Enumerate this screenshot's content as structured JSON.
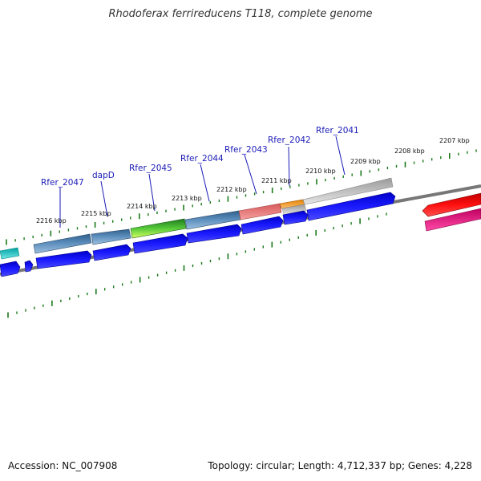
{
  "title": "Rhodoferax ferrireducens T118, complete genome",
  "accession": "Accession: NC_007908",
  "topology": "Topology: circular; Length: 4,712,337 bp; Genes: 4,228",
  "gene_labels": [
    "Rfer_2047",
    "dapD",
    "Rfer_2045",
    "Rfer_2044",
    "Rfer_2043",
    "Rfer_2042",
    "Rfer_2041"
  ],
  "tick_labels": [
    "2216 kbp",
    "2215 kbp",
    "2214 kbp",
    "2213 kbp",
    "2212 kbp",
    "2211 kbp",
    "2210 kbp",
    "2209 kbp",
    "2208 kbp",
    "2207 kbp"
  ],
  "colors": {
    "backbone": "#777777",
    "cds": "#0000ee",
    "tick": "#1a7a1a",
    "reverse_strand": "#e80000",
    "reverse_strand_2": "#e0107a"
  }
}
